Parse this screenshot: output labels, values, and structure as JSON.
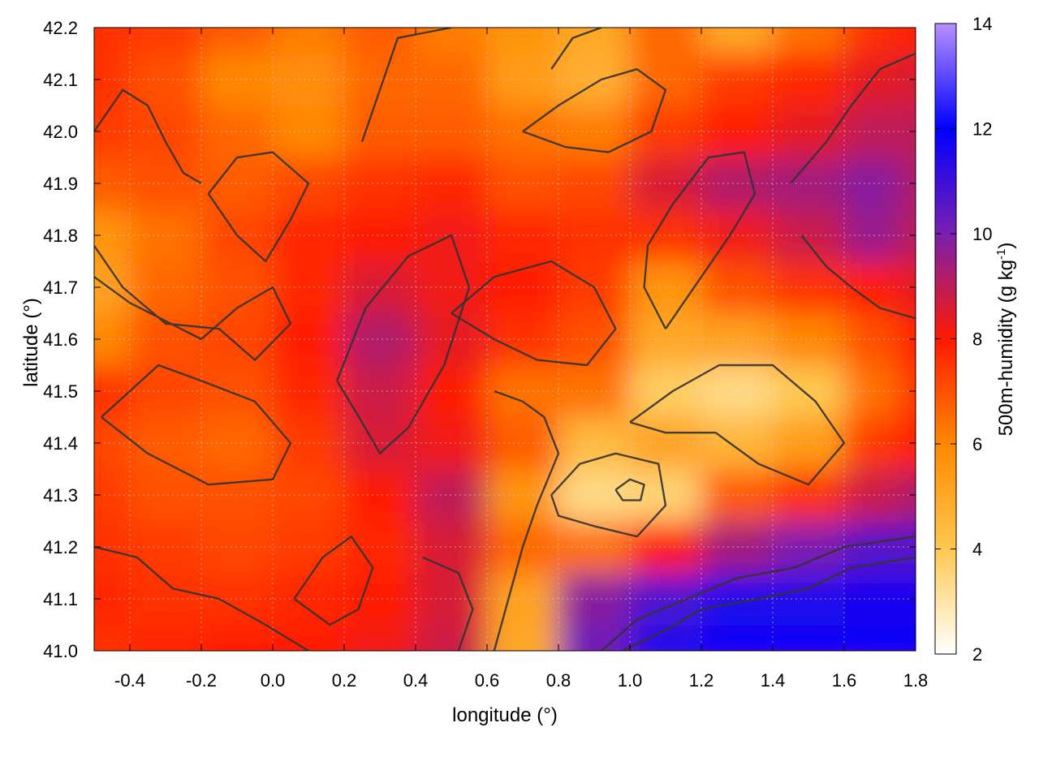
{
  "chart_data": {
    "type": "heatmap",
    "title": "",
    "xlabel": "longitude (°)",
    "ylabel": "latitude (°)",
    "colorbar_label": "500m-humidity (g kg",
    "colorbar_label_sup": "-1",
    "colorbar_label_end": ")",
    "xlim": [
      -0.5,
      1.8
    ],
    "ylim": [
      41.0,
      42.2
    ],
    "clim": [
      2,
      14
    ],
    "x_ticks": [
      -0.4,
      -0.2,
      0.0,
      0.2,
      0.4,
      0.6,
      0.8,
      1.0,
      1.2,
      1.4,
      1.6,
      1.8
    ],
    "x_tick_labels": [
      "-0.4",
      "-0.2",
      "0.0",
      "0.2",
      "0.4",
      "0.6",
      "0.8",
      "1.0",
      "1.2",
      "1.4",
      "1.6",
      "1.8"
    ],
    "y_ticks": [
      41.0,
      41.1,
      41.2,
      41.3,
      41.4,
      41.5,
      41.6,
      41.7,
      41.8,
      41.9,
      42.0,
      42.1,
      42.2
    ],
    "y_tick_labels": [
      "41.0",
      "41.1",
      "41.2",
      "41.3",
      "41.4",
      "41.5",
      "41.6",
      "41.7",
      "41.8",
      "41.9",
      "42.0",
      "42.1",
      "42.2"
    ],
    "colorbar_ticks": [
      2,
      4,
      6,
      8,
      10,
      12,
      14
    ],
    "colorbar_tick_labels": [
      "2",
      "4",
      "6",
      "8",
      "10",
      "12",
      "14"
    ],
    "colormap": [
      {
        "v": 2,
        "color": "#ffffff"
      },
      {
        "v": 4,
        "color": "#ffc850"
      },
      {
        "v": 6,
        "color": "#ff8800"
      },
      {
        "v": 8,
        "color": "#ff1a00"
      },
      {
        "v": 10,
        "color": "#7a1fb0"
      },
      {
        "v": 12,
        "color": "#0000ff"
      },
      {
        "v": 14,
        "color": "#b890ff"
      }
    ],
    "grid": true,
    "humidity_field": {
      "x": [
        -0.5,
        -0.3,
        -0.1,
        0.1,
        0.3,
        0.5,
        0.7,
        0.9,
        1.1,
        1.3,
        1.5,
        1.7,
        1.8
      ],
      "y": [
        41.0,
        41.1,
        41.2,
        41.3,
        41.4,
        41.5,
        41.6,
        41.7,
        41.8,
        41.9,
        42.0,
        42.1,
        42.2
      ],
      "values": [
        [
          7.6,
          7.8,
          7.9,
          8.0,
          8.2,
          8.8,
          5.0,
          10.2,
          11.5,
          11.8,
          11.8,
          11.8,
          11.8
        ],
        [
          7.8,
          7.6,
          7.6,
          7.8,
          8.0,
          8.6,
          5.2,
          9.8,
          10.8,
          11.5,
          11.5,
          11.6,
          11.6
        ],
        [
          7.6,
          7.4,
          7.2,
          7.4,
          7.8,
          8.6,
          6.6,
          6.4,
          8.0,
          9.4,
          10.0,
          10.6,
          10.6
        ],
        [
          7.4,
          7.0,
          7.0,
          7.2,
          8.0,
          9.0,
          5.6,
          3.4,
          3.6,
          6.8,
          7.6,
          8.8,
          9.2
        ],
        [
          7.2,
          6.8,
          6.6,
          7.4,
          8.6,
          8.2,
          6.8,
          4.4,
          5.2,
          4.6,
          5.4,
          7.4,
          8.0
        ],
        [
          7.6,
          7.2,
          7.0,
          7.8,
          8.8,
          8.0,
          6.4,
          6.4,
          3.8,
          3.4,
          4.0,
          6.4,
          7.6
        ],
        [
          6.0,
          7.0,
          7.2,
          8.0,
          9.2,
          8.4,
          7.6,
          7.0,
          5.0,
          5.2,
          6.0,
          7.0,
          8.0
        ],
        [
          5.2,
          6.6,
          7.0,
          7.8,
          8.6,
          8.2,
          8.0,
          7.4,
          5.6,
          7.0,
          7.6,
          8.0,
          8.4
        ],
        [
          5.6,
          6.4,
          7.2,
          7.8,
          8.0,
          8.2,
          7.8,
          7.6,
          7.6,
          8.2,
          8.8,
          9.6,
          9.0
        ],
        [
          6.8,
          7.0,
          6.8,
          7.2,
          7.6,
          7.8,
          7.0,
          7.2,
          8.6,
          9.2,
          9.4,
          9.8,
          9.2
        ],
        [
          7.4,
          7.2,
          6.6,
          6.0,
          6.8,
          6.8,
          6.4,
          6.2,
          7.4,
          8.0,
          8.4,
          9.0,
          9.0
        ],
        [
          7.6,
          7.0,
          6.0,
          5.8,
          6.6,
          6.6,
          5.4,
          4.8,
          6.6,
          7.4,
          7.8,
          8.4,
          8.6
        ],
        [
          7.6,
          7.4,
          6.8,
          6.2,
          6.8,
          6.2,
          5.6,
          5.0,
          6.6,
          5.0,
          6.4,
          7.6,
          8.0
        ]
      ]
    },
    "contours": [
      {
        "level": 7,
        "points": [
          [
            -0.48,
            41.45
          ],
          [
            -0.32,
            41.55
          ],
          [
            -0.2,
            41.52
          ],
          [
            -0.05,
            41.48
          ],
          [
            0.05,
            41.4
          ],
          [
            0.0,
            41.33
          ],
          [
            -0.18,
            41.32
          ],
          [
            -0.35,
            41.38
          ],
          [
            -0.48,
            41.45
          ]
        ]
      },
      {
        "level": 7,
        "points": [
          [
            -0.5,
            41.72
          ],
          [
            -0.4,
            41.67
          ],
          [
            -0.2,
            41.6
          ],
          [
            -0.1,
            41.66
          ],
          [
            0.0,
            41.7
          ],
          [
            0.05,
            41.63
          ],
          [
            -0.05,
            41.56
          ],
          [
            -0.15,
            41.62
          ],
          [
            -0.3,
            41.63
          ],
          [
            -0.42,
            41.7
          ],
          [
            -0.5,
            41.78
          ]
        ]
      },
      {
        "level": 6,
        "points": [
          [
            -0.18,
            41.88
          ],
          [
            -0.1,
            41.8
          ],
          [
            -0.02,
            41.75
          ],
          [
            0.05,
            41.83
          ],
          [
            0.1,
            41.9
          ],
          [
            0.0,
            41.96
          ],
          [
            -0.1,
            41.95
          ],
          [
            -0.18,
            41.88
          ]
        ]
      },
      {
        "level": 7,
        "points": [
          [
            0.18,
            41.52
          ],
          [
            0.25,
            41.44
          ],
          [
            0.3,
            41.38
          ],
          [
            0.38,
            41.43
          ],
          [
            0.48,
            41.55
          ],
          [
            0.55,
            41.7
          ],
          [
            0.5,
            41.8
          ],
          [
            0.38,
            41.76
          ],
          [
            0.26,
            41.66
          ],
          [
            0.18,
            41.52
          ]
        ]
      },
      {
        "level": 6,
        "points": [
          [
            0.78,
            41.3
          ],
          [
            0.86,
            41.36
          ],
          [
            0.96,
            41.38
          ],
          [
            1.08,
            41.36
          ],
          [
            1.1,
            41.28
          ],
          [
            1.02,
            41.22
          ],
          [
            0.9,
            41.24
          ],
          [
            0.8,
            41.26
          ],
          [
            0.78,
            41.3
          ]
        ]
      },
      {
        "level": 4,
        "points": [
          [
            0.96,
            41.31
          ],
          [
            1.0,
            41.33
          ],
          [
            1.04,
            41.32
          ],
          [
            1.03,
            41.29
          ],
          [
            0.98,
            41.29
          ],
          [
            0.96,
            41.31
          ]
        ]
      },
      {
        "level": 6,
        "points": [
          [
            1.0,
            41.44
          ],
          [
            1.12,
            41.5
          ],
          [
            1.25,
            41.55
          ],
          [
            1.4,
            41.55
          ],
          [
            1.52,
            41.48
          ],
          [
            1.6,
            41.4
          ],
          [
            1.5,
            41.32
          ],
          [
            1.36,
            41.36
          ],
          [
            1.24,
            41.42
          ],
          [
            1.1,
            41.42
          ],
          [
            1.0,
            41.44
          ]
        ]
      },
      {
        "level": 10,
        "points": [
          [
            0.92,
            41.0
          ],
          [
            1.02,
            41.06
          ],
          [
            1.16,
            41.1
          ],
          [
            1.3,
            41.14
          ],
          [
            1.46,
            41.16
          ],
          [
            1.6,
            41.2
          ],
          [
            1.8,
            41.22
          ]
        ]
      },
      {
        "level": 10,
        "points": [
          [
            0.98,
            41.0
          ],
          [
            1.1,
            41.04
          ],
          [
            1.2,
            41.08
          ],
          [
            1.36,
            41.1
          ],
          [
            1.5,
            41.12
          ],
          [
            1.62,
            41.16
          ],
          [
            1.8,
            41.18
          ]
        ]
      },
      {
        "level": 7,
        "points": [
          [
            0.62,
            41.0
          ],
          [
            0.66,
            41.1
          ],
          [
            0.7,
            41.2
          ],
          [
            0.74,
            41.28
          ],
          [
            0.8,
            41.38
          ],
          [
            0.76,
            41.45
          ],
          [
            0.7,
            41.48
          ],
          [
            0.62,
            41.5
          ]
        ]
      },
      {
        "level": 7,
        "points": [
          [
            0.42,
            41.18
          ],
          [
            0.52,
            41.15
          ],
          [
            0.56,
            41.08
          ],
          [
            0.52,
            41.0
          ]
        ]
      },
      {
        "level": 8,
        "points": [
          [
            0.5,
            41.65
          ],
          [
            0.62,
            41.72
          ],
          [
            0.78,
            41.75
          ],
          [
            0.9,
            41.7
          ],
          [
            0.96,
            41.62
          ],
          [
            0.88,
            41.55
          ],
          [
            0.74,
            41.56
          ],
          [
            0.62,
            41.6
          ],
          [
            0.5,
            41.65
          ]
        ]
      },
      {
        "level": 8,
        "points": [
          [
            1.1,
            41.62
          ],
          [
            1.2,
            41.72
          ],
          [
            1.28,
            41.8
          ],
          [
            1.35,
            41.88
          ],
          [
            1.32,
            41.96
          ],
          [
            1.22,
            41.95
          ],
          [
            1.12,
            41.86
          ],
          [
            1.05,
            41.78
          ],
          [
            1.04,
            41.7
          ],
          [
            1.1,
            41.62
          ]
        ]
      },
      {
        "level": 7,
        "points": [
          [
            0.25,
            41.98
          ],
          [
            0.3,
            42.08
          ],
          [
            0.35,
            42.18
          ],
          [
            0.5,
            42.2
          ]
        ]
      },
      {
        "level": 7,
        "points": [
          [
            0.7,
            42.0
          ],
          [
            0.8,
            42.05
          ],
          [
            0.92,
            42.1
          ],
          [
            1.02,
            42.12
          ],
          [
            1.1,
            42.08
          ],
          [
            1.06,
            42.0
          ],
          [
            0.94,
            41.96
          ],
          [
            0.82,
            41.97
          ],
          [
            0.7,
            42.0
          ]
        ]
      },
      {
        "level": 6,
        "points": [
          [
            0.78,
            42.12
          ],
          [
            0.84,
            42.18
          ],
          [
            0.92,
            42.2
          ]
        ]
      },
      {
        "level": 9,
        "points": [
          [
            1.45,
            41.9
          ],
          [
            1.55,
            41.98
          ],
          [
            1.62,
            42.05
          ],
          [
            1.7,
            42.12
          ],
          [
            1.8,
            42.15
          ]
        ]
      },
      {
        "level": 7,
        "points": [
          [
            1.48,
            41.8
          ],
          [
            1.55,
            41.74
          ],
          [
            1.62,
            41.7
          ],
          [
            1.7,
            41.66
          ],
          [
            1.8,
            41.64
          ]
        ]
      },
      {
        "level": 8,
        "points": [
          [
            -0.5,
            42.0
          ],
          [
            -0.42,
            42.08
          ],
          [
            -0.35,
            42.05
          ],
          [
            -0.3,
            41.98
          ],
          [
            -0.25,
            41.92
          ],
          [
            -0.2,
            41.9
          ]
        ]
      },
      {
        "level": 8,
        "points": [
          [
            -0.5,
            41.2
          ],
          [
            -0.38,
            41.18
          ],
          [
            -0.28,
            41.12
          ],
          [
            -0.15,
            41.1
          ],
          [
            -0.02,
            41.05
          ],
          [
            0.1,
            41.0
          ]
        ]
      },
      {
        "level": 8,
        "points": [
          [
            0.06,
            41.1
          ],
          [
            0.14,
            41.18
          ],
          [
            0.22,
            41.22
          ],
          [
            0.28,
            41.16
          ],
          [
            0.24,
            41.08
          ],
          [
            0.16,
            41.05
          ],
          [
            0.06,
            41.1
          ]
        ]
      }
    ]
  }
}
